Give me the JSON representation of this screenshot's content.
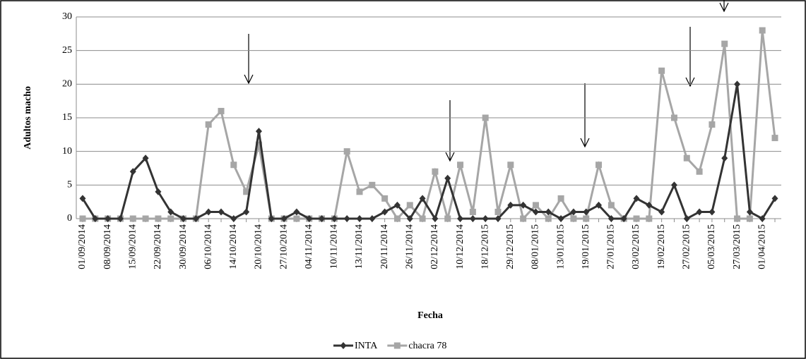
{
  "chart_data": {
    "type": "line",
    "y_label": "Adultos macho",
    "x_label": "Fecha",
    "categories": [
      "01/09/2014",
      null,
      "08/09/2014",
      null,
      "15/09/2014",
      null,
      "22/09/2014",
      null,
      "30/09/2014",
      null,
      "06/10/2014",
      null,
      "14/10/2014",
      null,
      "20/10/2014",
      null,
      "27/10/2014",
      null,
      "04/11/2014",
      null,
      "10/11/2014",
      null,
      "13/11/2014",
      null,
      "20/11/2014",
      null,
      "26/11/2014",
      null,
      "02/12/2014",
      null,
      "10/12/2014",
      null,
      "18/12/2015",
      null,
      "29/12/2015",
      null,
      "08/01/2015",
      null,
      "13/01/2015",
      null,
      "19/01/2015",
      null,
      "27/01/2015",
      null,
      "03/02/2015",
      null,
      "19/02/2015",
      null,
      "27/02/2015",
      null,
      "05/03/2015",
      null,
      "27/03/2015",
      null,
      "01/04/2015",
      null
    ],
    "series": [
      {
        "name": "INTA",
        "color": "#333333",
        "marker": "diamond",
        "values": [
          3,
          0,
          0,
          0,
          7,
          9,
          4,
          1,
          0,
          0,
          1,
          1,
          0,
          1,
          13,
          0,
          0,
          1,
          0,
          0,
          0,
          0,
          0,
          0,
          1,
          2,
          0,
          3,
          0,
          6,
          0,
          0,
          0,
          0,
          2,
          2,
          1,
          1,
          0,
          1,
          1,
          2,
          0,
          0,
          3,
          2,
          1,
          5,
          0,
          1,
          1,
          9,
          20,
          1,
          0,
          3
        ]
      },
      {
        "name": "chacra 78",
        "color": "#a6a6a6",
        "marker": "square",
        "values": [
          0,
          0,
          0,
          0,
          0,
          0,
          0,
          0,
          0,
          0,
          14,
          16,
          8,
          4,
          11,
          0,
          0,
          0,
          0,
          0,
          0,
          10,
          4,
          5,
          3,
          0,
          2,
          0,
          7,
          0,
          8,
          1,
          15,
          1,
          8,
          0,
          2,
          0,
          3,
          0,
          0,
          8,
          2,
          0,
          0,
          0,
          22,
          15,
          9,
          7,
          14,
          26,
          0,
          0,
          28,
          12
        ]
      }
    ],
    "ylim": [
      0,
      30
    ],
    "yticks": [
      0,
      5,
      10,
      15,
      20,
      25,
      30
    ],
    "grid": true
  }
}
